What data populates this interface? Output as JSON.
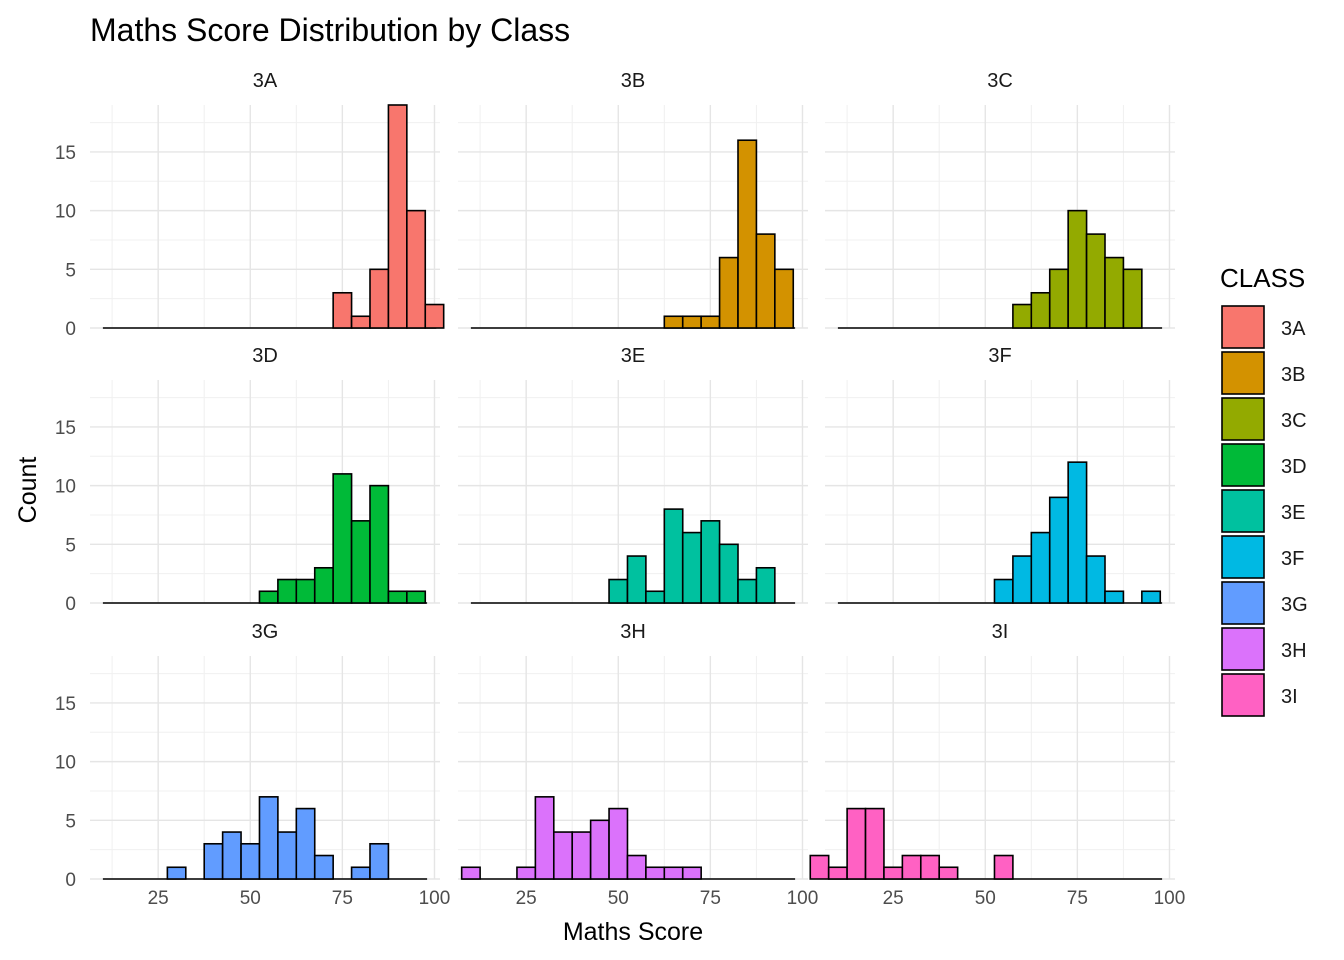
{
  "chart_data": {
    "type": "bar",
    "subtype": "faceted-histogram",
    "title": "Maths Score Distribution by Class",
    "xlabel": "Maths Score",
    "ylabel": "Count",
    "xlim": [
      6.5,
      101.5
    ],
    "ylim": [
      0,
      19
    ],
    "x_ticks": [
      25,
      50,
      75,
      100
    ],
    "y_ticks": [
      0,
      5,
      10,
      15
    ],
    "bin_width": 5,
    "grid": true,
    "facet_layout": {
      "rows": 3,
      "cols": 3
    },
    "legend": {
      "title": "CLASS",
      "position": "right"
    },
    "series": [
      {
        "name": "3A",
        "color": "#F8766D",
        "bins": [
          [
            75,
            3
          ],
          [
            80,
            1
          ],
          [
            85,
            5
          ],
          [
            90,
            19
          ],
          [
            95,
            10
          ],
          [
            100,
            2
          ]
        ]
      },
      {
        "name": "3B",
        "color": "#D39200",
        "bins": [
          [
            65,
            1
          ],
          [
            70,
            1
          ],
          [
            75,
            1
          ],
          [
            80,
            6
          ],
          [
            85,
            16
          ],
          [
            90,
            8
          ],
          [
            95,
            5
          ]
        ]
      },
      {
        "name": "3C",
        "color": "#93AA00",
        "bins": [
          [
            60,
            2
          ],
          [
            65,
            3
          ],
          [
            70,
            5
          ],
          [
            75,
            10
          ],
          [
            80,
            8
          ],
          [
            85,
            6
          ],
          [
            90,
            5
          ]
        ]
      },
      {
        "name": "3D",
        "color": "#00BA38",
        "bins": [
          [
            55,
            1
          ],
          [
            60,
            2
          ],
          [
            65,
            2
          ],
          [
            70,
            3
          ],
          [
            75,
            11
          ],
          [
            80,
            7
          ],
          [
            85,
            10
          ],
          [
            90,
            1
          ],
          [
            95,
            1
          ]
        ]
      },
      {
        "name": "3E",
        "color": "#00C19F",
        "bins": [
          [
            50,
            2
          ],
          [
            55,
            4
          ],
          [
            60,
            1
          ],
          [
            65,
            8
          ],
          [
            70,
            6
          ],
          [
            75,
            7
          ],
          [
            80,
            5
          ],
          [
            85,
            2
          ],
          [
            90,
            3
          ]
        ]
      },
      {
        "name": "3F",
        "color": "#00B9E3",
        "bins": [
          [
            55,
            2
          ],
          [
            60,
            4
          ],
          [
            65,
            6
          ],
          [
            70,
            9
          ],
          [
            75,
            12
          ],
          [
            80,
            4
          ],
          [
            85,
            1
          ],
          [
            90,
            0
          ],
          [
            95,
            1
          ]
        ]
      },
      {
        "name": "3G",
        "color": "#619CFF",
        "bins": [
          [
            30,
            1
          ],
          [
            35,
            0
          ],
          [
            40,
            3
          ],
          [
            45,
            4
          ],
          [
            50,
            3
          ],
          [
            55,
            7
          ],
          [
            60,
            4
          ],
          [
            65,
            6
          ],
          [
            70,
            2
          ],
          [
            75,
            0
          ],
          [
            80,
            1
          ],
          [
            85,
            3
          ]
        ]
      },
      {
        "name": "3H",
        "color": "#DB72FB",
        "bins": [
          [
            10,
            1
          ],
          [
            15,
            0
          ],
          [
            20,
            0
          ],
          [
            25,
            1
          ],
          [
            30,
            7
          ],
          [
            35,
            4
          ],
          [
            40,
            4
          ],
          [
            45,
            5
          ],
          [
            50,
            6
          ],
          [
            55,
            2
          ],
          [
            60,
            1
          ],
          [
            65,
            1
          ],
          [
            70,
            1
          ]
        ]
      },
      {
        "name": "3I",
        "color": "#FF61C3",
        "bins": [
          [
            5,
            2
          ],
          [
            10,
            1
          ],
          [
            15,
            6
          ],
          [
            20,
            6
          ],
          [
            25,
            1
          ],
          [
            30,
            2
          ],
          [
            35,
            2
          ],
          [
            40,
            1
          ],
          [
            45,
            0
          ],
          [
            50,
            0
          ],
          [
            55,
            2
          ]
        ]
      }
    ]
  }
}
